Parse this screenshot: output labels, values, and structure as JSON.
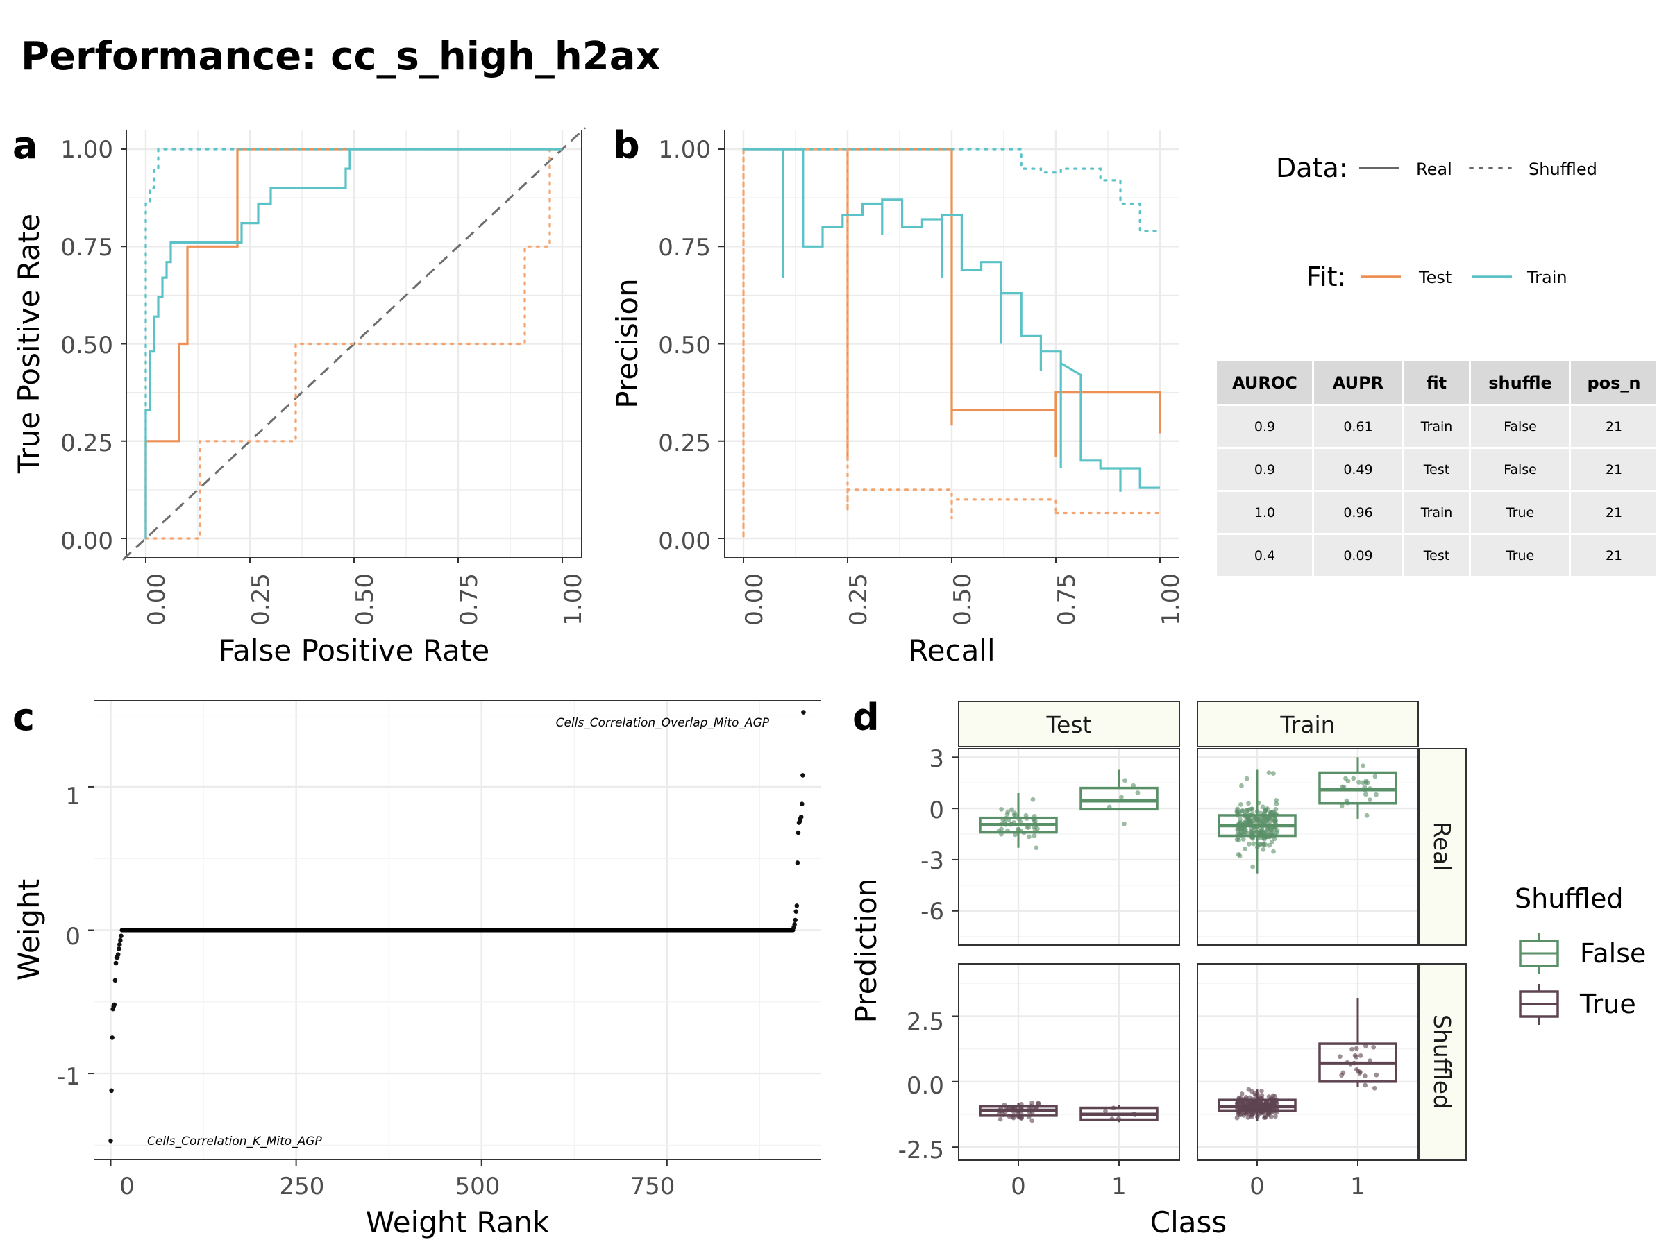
{
  "figure": {
    "title": "Performance: cc_s_high_h2ax"
  },
  "colors": {
    "test": "#F4A46F",
    "test_line": "#EE8F54",
    "train": "#5BC2C8",
    "false": "#5A9068",
    "true": "#5E4350",
    "diag": "#6E6E6E",
    "strip_bg": "#FBFCF1"
  },
  "panels": {
    "a": {
      "letter": "a",
      "xlabel": "False Positive Rate",
      "ylabel": "True Positive Rate",
      "xticks": [
        "0.00",
        "0.25",
        "0.50",
        "0.75",
        "1.00"
      ],
      "yticks": [
        "0.00",
        "0.25",
        "0.50",
        "0.75",
        "1.00"
      ]
    },
    "b": {
      "letter": "b",
      "xlabel": "Recall",
      "ylabel": "Precision",
      "xticks": [
        "0.00",
        "0.25",
        "0.50",
        "0.75",
        "1.00"
      ],
      "yticks": [
        "0.00",
        "0.25",
        "0.50",
        "0.75",
        "1.00"
      ]
    },
    "c": {
      "letter": "c",
      "xlabel": "Weight Rank",
      "ylabel": "Weight",
      "xticks": [
        "0",
        "250",
        "500",
        "750"
      ],
      "yticks": [
        "-1",
        "0",
        "1"
      ],
      "annotations": [
        "Cells_Correlation_Overlap_Mito_AGP",
        "Cells_Correlation_K_Mito_AGP"
      ]
    },
    "d": {
      "letter": "d",
      "xlabel": "Class",
      "ylabel": "Prediction",
      "col_strips": [
        "Test",
        "Train"
      ],
      "row_strips": [
        "Real",
        "Shuffled"
      ],
      "xticks": [
        "0",
        "1"
      ],
      "yticks_real": [
        "3",
        "0",
        "-3",
        "-6"
      ],
      "yticks_shuffled": [
        "2.5",
        "0.0",
        "-2.5"
      ]
    }
  },
  "legend": {
    "data_title": "Data:",
    "data_real": "Real",
    "data_shuffled": "Shuffled",
    "fit_title": "Fit:",
    "fit_test": "Test",
    "fit_train": "Train",
    "shuffled_title": "Shuffled",
    "shuffled_false": "False",
    "shuffled_true": "True"
  },
  "table": {
    "columns": [
      "AUROC",
      "AUPR",
      "fit",
      "shuffle",
      "pos_n"
    ],
    "rows": [
      [
        "0.9",
        "0.61",
        "Train",
        "False",
        "21"
      ],
      [
        "0.9",
        "0.49",
        "Test",
        "False",
        "21"
      ],
      [
        "1.0",
        "0.96",
        "Train",
        "True",
        "21"
      ],
      [
        "0.4",
        "0.09",
        "Test",
        "True",
        "21"
      ]
    ]
  },
  "chart_data": [
    {
      "type": "line",
      "panel": "a",
      "xlabel": "False Positive Rate",
      "ylabel": "True Positive Rate",
      "xlim": [
        0,
        1
      ],
      "ylim": [
        0,
        1
      ],
      "grid": true,
      "diagonal_reference": true,
      "series": [
        {
          "fit": "Test",
          "data": "Real",
          "x": [
            0,
            0,
            0.08,
            0.08,
            0.1,
            0.1,
            0.22,
            0.22,
            1
          ],
          "y": [
            0,
            0.25,
            0.25,
            0.5,
            0.5,
            0.75,
            0.75,
            1,
            1
          ]
        },
        {
          "fit": "Test",
          "data": "Shuffled",
          "x": [
            0,
            0,
            0.13,
            0.13,
            0.36,
            0.36,
            0.91,
            0.91,
            0.97,
            0.97,
            1
          ],
          "y": [
            0,
            0,
            0,
            0.25,
            0.25,
            0.5,
            0.5,
            0.75,
            0.75,
            1,
            1
          ]
        },
        {
          "fit": "Train",
          "data": "Real",
          "x": [
            0,
            0,
            0.01,
            0.01,
            0.02,
            0.02,
            0.03,
            0.03,
            0.04,
            0.04,
            0.05,
            0.05,
            0.06,
            0.06,
            0.08,
            0.08,
            0.23,
            0.23,
            0.27,
            0.27,
            0.3,
            0.3,
            0.48,
            0.48,
            0.49,
            0.49,
            1
          ],
          "y": [
            0,
            0.33,
            0.33,
            0.48,
            0.48,
            0.57,
            0.57,
            0.62,
            0.62,
            0.67,
            0.67,
            0.71,
            0.71,
            0.76,
            0.76,
            0.76,
            0.76,
            0.81,
            0.81,
            0.86,
            0.86,
            0.9,
            0.9,
            0.95,
            0.95,
            1,
            1
          ]
        },
        {
          "fit": "Train",
          "data": "Shuffled",
          "x": [
            0,
            0,
            0.01,
            0.01,
            0.02,
            0.02,
            0.03,
            0.03,
            0.04,
            1
          ],
          "y": [
            0,
            0.86,
            0.86,
            0.9,
            0.9,
            0.95,
            0.95,
            1,
            1,
            1
          ]
        }
      ]
    },
    {
      "type": "line",
      "panel": "b",
      "xlabel": "Recall",
      "ylabel": "Precision",
      "xlim": [
        0,
        1
      ],
      "ylim": [
        0,
        1
      ],
      "grid": true,
      "series": [
        {
          "fit": "Test",
          "data": "Real",
          "x": [
            0,
            0.25,
            0.25,
            0.25,
            0.25,
            0.5,
            0.5,
            0.5,
            0.75,
            0.75,
            0.75,
            1,
            1
          ],
          "y": [
            1,
            1,
            0.2,
            1,
            1,
            1,
            0.29,
            0.33,
            0.33,
            0.21,
            0.375,
            0.375,
            0.27
          ]
        },
        {
          "fit": "Test",
          "data": "Shuffled",
          "x": [
            0,
            0,
            0,
            0.25,
            0.25,
            0.25,
            0.5,
            0.5,
            0.5,
            0.75,
            0.75,
            0.75,
            1,
            1
          ],
          "y": [
            1,
            0,
            1,
            1,
            0.07,
            0.125,
            0.125,
            0.05,
            0.1,
            0.1,
            0.06,
            0.065,
            0.065,
            0.07
          ]
        },
        {
          "fit": "Train",
          "data": "Real",
          "x": [
            0,
            0.095,
            0.095,
            0.095,
            0.143,
            0.143,
            0.19,
            0.19,
            0.238,
            0.238,
            0.286,
            0.286,
            0.333,
            0.333,
            0.333,
            0.381,
            0.381,
            0.429,
            0.429,
            0.476,
            0.476,
            0.476,
            0.524,
            0.524,
            0.571,
            0.571,
            0.619,
            0.619,
            0.619,
            0.667,
            0.667,
            0.714,
            0.714,
            0.714,
            0.762,
            0.762,
            0.762,
            0.81,
            0.81,
            0.857,
            0.857,
            0.905,
            0.905,
            0.905,
            0.952,
            0.952,
            1
          ],
          "y": [
            1,
            1,
            0.67,
            1,
            1,
            0.75,
            0.75,
            0.8,
            0.8,
            0.83,
            0.83,
            0.86,
            0.86,
            0.78,
            0.87,
            0.87,
            0.8,
            0.8,
            0.82,
            0.82,
            0.67,
            0.83,
            0.83,
            0.69,
            0.69,
            0.71,
            0.71,
            0.5,
            0.63,
            0.63,
            0.52,
            0.52,
            0.43,
            0.48,
            0.48,
            0.18,
            0.45,
            0.42,
            0.2,
            0.2,
            0.18,
            0.18,
            0.12,
            0.18,
            0.18,
            0.13,
            0.13
          ]
        },
        {
          "fit": "Train",
          "data": "Shuffled",
          "x": [
            0,
            0.667,
            0.667,
            0.714,
            0.714,
            0.762,
            0.762,
            0.857,
            0.857,
            0.905,
            0.905,
            0.952,
            0.952,
            1
          ],
          "y": [
            1,
            1,
            0.95,
            0.95,
            0.94,
            0.94,
            0.95,
            0.95,
            0.92,
            0.92,
            0.86,
            0.86,
            0.79,
            0.79
          ]
        }
      ]
    },
    {
      "type": "scatter",
      "panel": "c",
      "xlabel": "Weight Rank",
      "ylabel": "Weight",
      "xlim": [
        -22,
        957
      ],
      "ylim": [
        -1.6,
        1.6
      ],
      "grid": true,
      "points": [
        [
          0,
          -1.47
        ],
        [
          1,
          -1.12
        ],
        [
          2,
          -0.75
        ],
        [
          3,
          -0.55
        ],
        [
          4,
          -0.53
        ],
        [
          5,
          -0.52
        ],
        [
          6,
          -0.35
        ],
        [
          7,
          -0.23
        ],
        [
          8,
          -0.19
        ],
        [
          9,
          -0.19
        ],
        [
          10,
          -0.17
        ],
        [
          11,
          -0.13
        ],
        [
          12,
          -0.1
        ],
        [
          13,
          -0.07
        ],
        [
          14,
          -0.04
        ],
        [
          921,
          0.02
        ],
        [
          922,
          0.04
        ],
        [
          923,
          0.07
        ],
        [
          924,
          0.13
        ],
        [
          925,
          0.17
        ],
        [
          926,
          0.47
        ],
        [
          927,
          0.68
        ],
        [
          928,
          0.75
        ],
        [
          929,
          0.76
        ],
        [
          930,
          0.78
        ],
        [
          931,
          0.79
        ],
        [
          932,
          0.88
        ],
        [
          933,
          1.08
        ],
        [
          934,
          1.52
        ]
      ],
      "zero_run": {
        "from": 15,
        "to": 920,
        "value": 0
      },
      "labels": [
        {
          "text": "Cells_Correlation_Overlap_Mito_AGP",
          "x": 934,
          "y": 1.52
        },
        {
          "text": "Cells_Correlation_K_Mito_AGP",
          "x": 0,
          "y": -1.47
        }
      ]
    },
    {
      "type": "box",
      "panel": "d",
      "xlabel": "Class",
      "ylabel": "Prediction",
      "facets": [
        {
          "fit": "Test",
          "data": "Real",
          "shuffled": "False",
          "boxes": [
            {
              "class": 0,
              "whisker_low": -2.3,
              "q1": -1.4,
              "median": -0.95,
              "q3": -0.55,
              "whisker_high": 0.9
            },
            {
              "class": 1,
              "whisker_low": -0.1,
              "q1": -0.05,
              "median": 0.45,
              "q3": 1.2,
              "whisker_high": 2.3
            }
          ]
        },
        {
          "fit": "Train",
          "data": "Real",
          "shuffled": "False",
          "boxes": [
            {
              "class": 0,
              "whisker_low": -3.8,
              "q1": -1.6,
              "median": -1.0,
              "q3": -0.4,
              "whisker_high": 2.3
            },
            {
              "class": 1,
              "whisker_low": -0.6,
              "q1": 0.3,
              "median": 1.1,
              "q3": 2.1,
              "whisker_high": 3.0
            }
          ]
        },
        {
          "fit": "Test",
          "data": "Shuffled",
          "shuffled": "True",
          "boxes": [
            {
              "class": 0,
              "whisker_low": -1.4,
              "q1": -1.3,
              "median": -1.1,
              "q3": -0.95,
              "whisker_high": -0.8
            },
            {
              "class": 1,
              "whisker_low": -1.55,
              "q1": -1.45,
              "median": -1.25,
              "q3": -1.0,
              "whisker_high": -0.9
            }
          ]
        },
        {
          "fit": "Train",
          "data": "Shuffled",
          "shuffled": "True",
          "boxes": [
            {
              "class": 0,
              "whisker_low": -1.5,
              "q1": -1.1,
              "median": -0.95,
              "q3": -0.7,
              "whisker_high": -0.3
            },
            {
              "class": 1,
              "whisker_low": -0.2,
              "q1": 0.0,
              "median": 0.7,
              "q3": 1.45,
              "whisker_high": 3.2
            }
          ]
        }
      ],
      "ylim_real": [
        -8,
        3.5
      ],
      "ylim_shuffled": [
        -3,
        4.5
      ]
    }
  ]
}
